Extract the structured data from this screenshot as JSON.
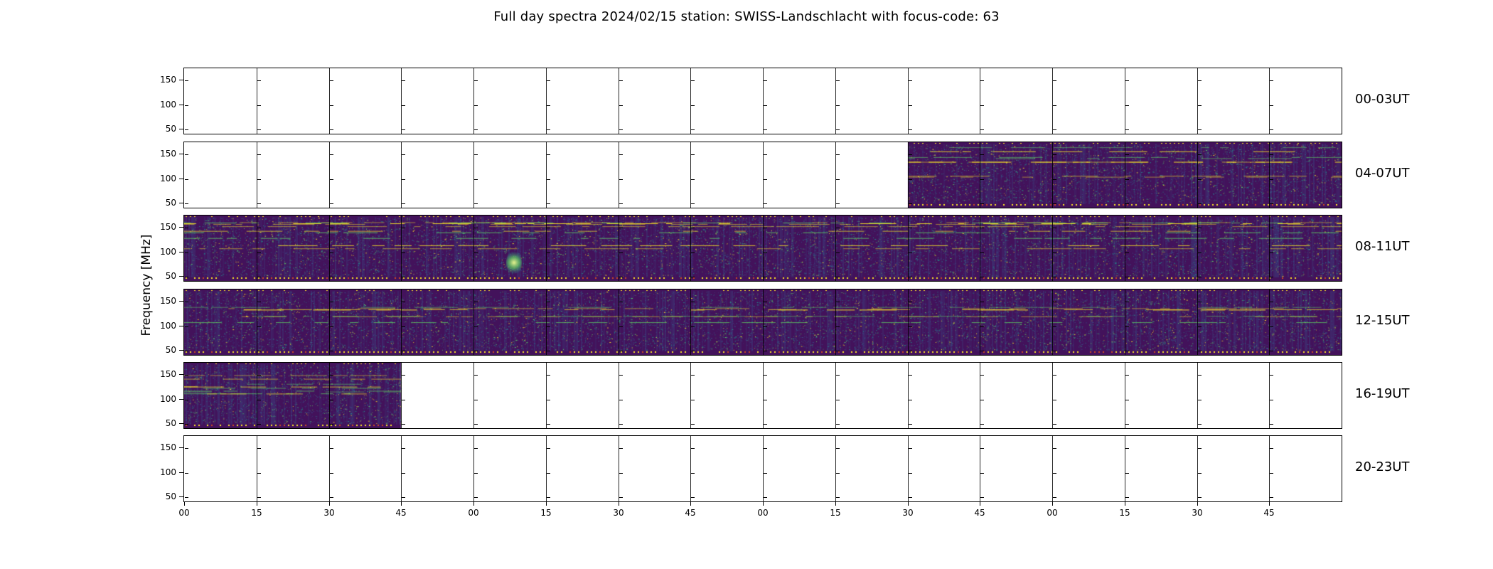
{
  "chart_data": {
    "type": "heatmap",
    "title": "Full day spectra 2024/02/15 station: SWISS-Landschlacht with focus-code: 63",
    "date": "2024/02/15",
    "station": "SWISS-Landschlacht",
    "focus_code": "63",
    "ylabel": "Frequency [MHz]",
    "y_tick_labels": [
      "150",
      "100",
      "50"
    ],
    "y_range_mhz": [
      45,
      170
    ],
    "x_tick_labels": [
      "00",
      "15",
      "30",
      "45",
      "00",
      "15",
      "30",
      "45",
      "00",
      "15",
      "30",
      "45",
      "00",
      "15",
      "30",
      "45"
    ],
    "x_unit": "minutes",
    "hours_per_panel": 4,
    "subpanels_per_row": 16,
    "legend_position": "none",
    "grid": true,
    "colors": {
      "base": "#43125b",
      "blue_speckle": "#3b528b",
      "teal": "#21918c",
      "green": "#5ec962",
      "yellow": "#fde725",
      "red": "#cc4922",
      "frame": "#000000",
      "background": "#ffffff"
    },
    "panels": [
      {
        "label": "00-03UT",
        "has_data": false,
        "coverage": []
      },
      {
        "label": "04-07UT",
        "has_data": true,
        "coverage": [
          {
            "start": 0.625,
            "end": 1.0
          }
        ]
      },
      {
        "label": "08-11UT",
        "has_data": true,
        "coverage": [
          {
            "start": 0.0,
            "end": 1.0
          }
        ],
        "features": [
          {
            "type": "bright-burst",
            "x_frac": 0.285,
            "y_frac": 0.72
          }
        ]
      },
      {
        "label": "12-15UT",
        "has_data": true,
        "coverage": [
          {
            "start": 0.0,
            "end": 1.0
          }
        ]
      },
      {
        "label": "16-19UT",
        "has_data": true,
        "coverage": [
          {
            "start": 0.0,
            "end": 0.1875
          }
        ]
      },
      {
        "label": "20-23UT",
        "has_data": false,
        "coverage": []
      }
    ]
  }
}
